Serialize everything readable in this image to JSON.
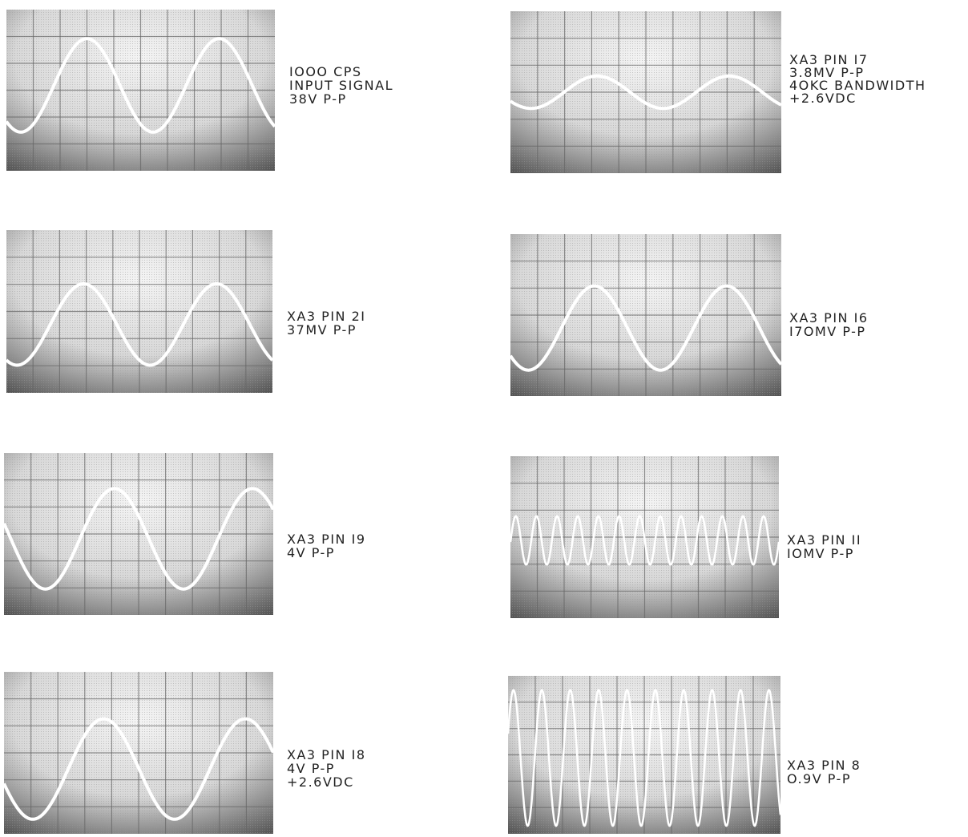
{
  "panels": [
    {
      "lines": [
        "IOOO CPS",
        "INPUT SIGNAL",
        "38V P-P"
      ]
    },
    {
      "lines": [
        "XA3 PIN I7",
        "3.8MV P-P",
        "4OKC BANDWIDTH",
        "+2.6VDC"
      ]
    },
    {
      "lines": [
        "XA3 PIN 2I",
        "37MV P-P"
      ]
    },
    {
      "lines": [
        "XA3 PIN I6",
        "I7OMV P-P"
      ]
    },
    {
      "lines": [
        "XA3 PIN I9",
        "4V P-P"
      ]
    },
    {
      "lines": [
        "XA3 PIN II",
        "IOMV P-P"
      ]
    },
    {
      "lines": [
        "XA3 PIN I8",
        "4V P-P",
        "+2.6VDC"
      ]
    },
    {
      "lines": [
        "XA3 PIN 8",
        "O.9V P-P"
      ]
    }
  ]
}
